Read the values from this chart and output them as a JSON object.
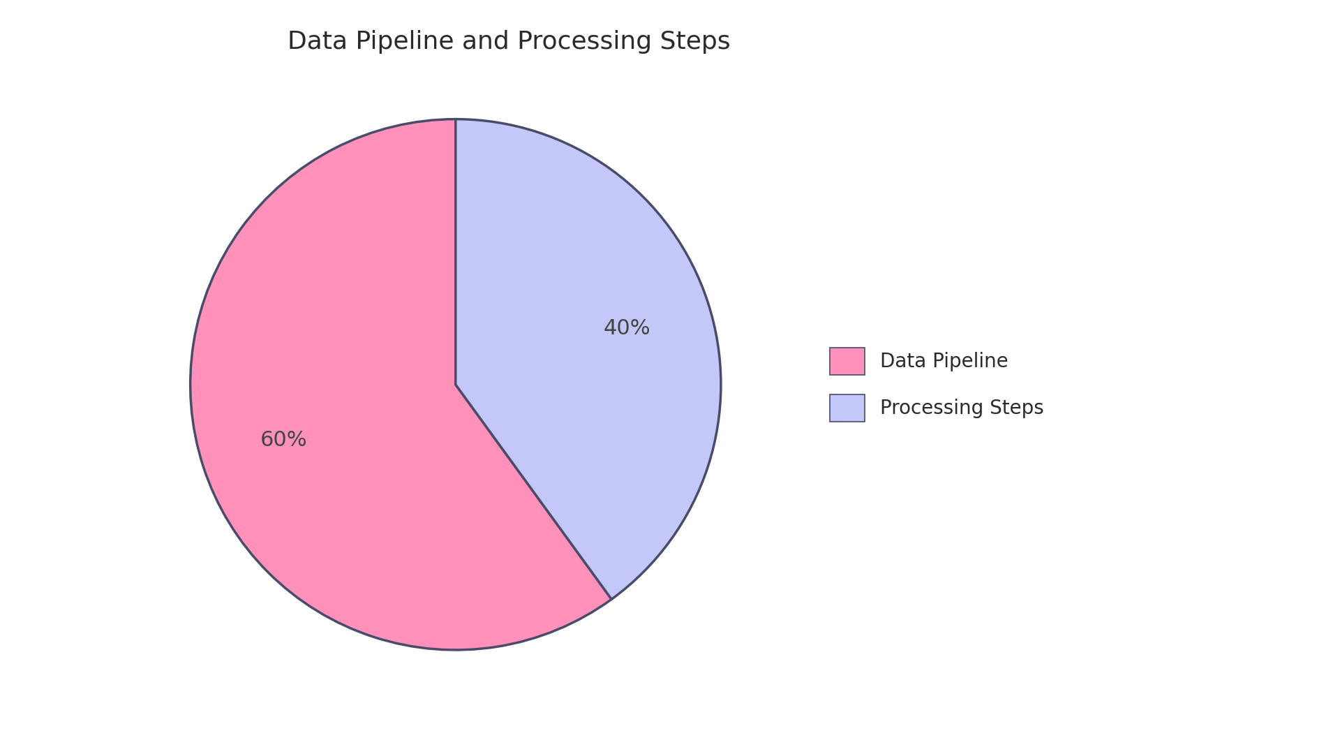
{
  "title": "Data Pipeline and Processing Steps",
  "title_fontsize": 26,
  "title_color": "#2a2a2a",
  "slices": [
    60,
    40
  ],
  "labels": [
    "Data Pipeline",
    "Processing Steps"
  ],
  "colors": [
    "#FF91BB",
    "#C4C8F8"
  ],
  "edge_color": "#4A4A6A",
  "edge_linewidth": 2.5,
  "autopct_fontsize": 22,
  "autopct_color": "#444444",
  "start_angle": 90,
  "legend_fontsize": 20,
  "background_color": "#FFFFFF",
  "pct_distance": 0.68
}
